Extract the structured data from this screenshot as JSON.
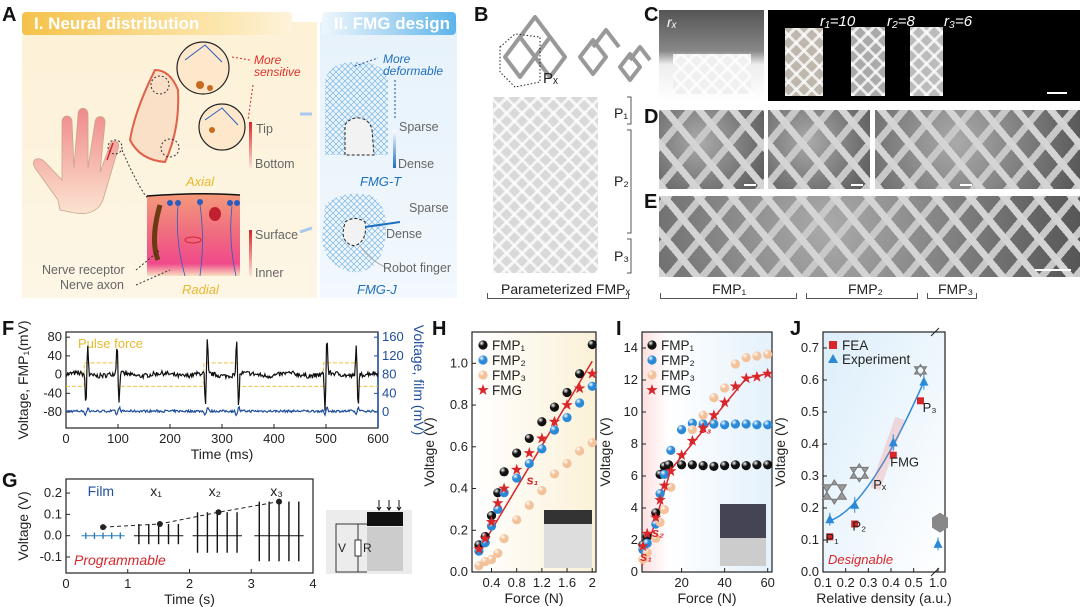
{
  "panels": {
    "A": "A",
    "B": "B",
    "C": "C",
    "D": "D",
    "E": "E",
    "F": "F",
    "G": "G",
    "H": "H",
    "I": "I",
    "J": "J"
  },
  "panel_a": {
    "header_left": "I. Neural distribution",
    "header_right": "II. FMG design",
    "more_sensitive": "More sensitive",
    "tip": "Tip",
    "bottom": "Bottom",
    "axial": "Axial",
    "surface": "Surface",
    "inner": "Inner",
    "radial": "Radial",
    "nerve_receptor": "Nerve receptor",
    "nerve_axon": "Nerve axon",
    "more_deformable": "More deformable",
    "sparse_t": "Sparse",
    "dense_t": "Dense",
    "fmg_t": "FMG-T",
    "sparse_j": "Sparse",
    "dense_j": "Dense",
    "robot_finger": "Robot finger",
    "fmg_j": "FMG-J",
    "colors": {
      "red": "#e0302a",
      "yellow": "#e8b92e",
      "blue": "#1e6fc0"
    }
  },
  "panel_b": {
    "px": "Pₓ",
    "p1": "P₁",
    "p2": "P₂",
    "p3": "P₃",
    "caption": "Parameterized FMPₓ"
  },
  "panel_c": {
    "rx": "rₓ",
    "r1": "r₁=10",
    "r2": "r₂=8",
    "r3": "r₃=6"
  },
  "panel_e": {
    "fmp1": "FMP₁",
    "fmp2": "FMP₂",
    "fmp3": "FMP₃"
  },
  "chart_data": [
    {
      "id": "F",
      "type": "line",
      "xlabel": "Time (ms)",
      "ylabel": "Voltage, FMP₁(mV)",
      "ylabel_right": "Voltage, film (mV)",
      "xlim": [
        0,
        600
      ],
      "ylim": [
        -114,
        91
      ],
      "ylim_right": [
        -34,
        171
      ],
      "xticks": [
        0,
        100,
        200,
        300,
        400,
        500,
        600
      ],
      "yticks": [
        80,
        40,
        0,
        -40,
        -80
      ],
      "yticks_right": [
        160,
        120,
        80,
        40,
        0
      ],
      "annotation": "Pulse force",
      "spike_times_ms": [
        40,
        100,
        270,
        330,
        500,
        560
      ],
      "spike_amplitudes_mV": [
        50,
        -50,
        55,
        -55,
        60,
        -50
      ],
      "pulse_force_intervals_ms": [
        [
          35,
          100
        ],
        [
          265,
          330
        ],
        [
          495,
          560
        ]
      ],
      "pulse_levels_mV": [
        -25,
        25
      ],
      "fmp1_baseline_mV": 0,
      "film_baseline_mV": 2,
      "colors": {
        "fmp1": "#111111",
        "film": "#1f4e9c",
        "pulse": "#f0c040"
      }
    },
    {
      "id": "G",
      "type": "line",
      "xlabel": "Time (s)",
      "ylabel": "Voltage (V)",
      "xlim": [
        0,
        4
      ],
      "ylim": [
        -0.175,
        0.266
      ],
      "xticks": [
        0,
        1,
        2,
        3,
        4
      ],
      "yticks": [
        0.2,
        0.1,
        0.0,
        -0.1
      ],
      "groups": [
        {
          "name": "Film",
          "start": 0.25,
          "end": 0.95,
          "peak": 0.015,
          "neg": -0.015,
          "color": "#2a7fc0"
        },
        {
          "name": "x₁",
          "start": 1.1,
          "end": 1.9,
          "peak": 0.055,
          "neg": -0.04,
          "color": "#111111"
        },
        {
          "name": "x₂",
          "start": 2.05,
          "end": 2.85,
          "peak": 0.11,
          "neg": -0.08,
          "color": "#111111"
        },
        {
          "name": "x₃",
          "start": 3.05,
          "end": 3.85,
          "peak": 0.16,
          "neg": -0.12,
          "color": "#111111"
        }
      ],
      "trend": [
        [
          0.6,
          0.04
        ],
        [
          1.52,
          0.055
        ],
        [
          2.47,
          0.11
        ],
        [
          3.45,
          0.16
        ]
      ],
      "annotation": "Programmable",
      "inset": {
        "v": "V",
        "r": "R"
      }
    },
    {
      "id": "H",
      "type": "scatter",
      "xlabel": "Force (N)",
      "ylabel": "Voltage (V)",
      "xlim": [
        0.09,
        2.06
      ],
      "ylim": [
        0,
        1.15
      ],
      "xticks": [
        0.4,
        0.8,
        1.2,
        1.6,
        2.0
      ],
      "yticks": [
        0.0,
        0.2,
        0.4,
        0.6,
        0.8,
        1.0
      ],
      "x": [
        0.2,
        0.3,
        0.4,
        0.5,
        0.6,
        0.8,
        1.0,
        1.2,
        1.4,
        1.6,
        1.8,
        2.0
      ],
      "series": [
        {
          "name": "FMP₁",
          "marker": "ball",
          "color": "#111111",
          "values": [
            0.13,
            0.17,
            0.27,
            0.38,
            0.48,
            0.57,
            0.64,
            0.72,
            0.79,
            0.86,
            0.95,
            1.09
          ]
        },
        {
          "name": "FMP₂",
          "marker": "ball",
          "color": "#2a8ad8",
          "values": [
            0.1,
            0.14,
            0.22,
            0.3,
            0.38,
            0.45,
            0.52,
            0.59,
            0.68,
            0.74,
            0.81,
            0.89
          ]
        },
        {
          "name": "FMP₃",
          "marker": "ball",
          "color": "#f3c29a",
          "values": [
            0.03,
            0.05,
            0.06,
            0.09,
            0.16,
            0.25,
            0.32,
            0.39,
            0.47,
            0.52,
            0.58,
            0.62
          ]
        },
        {
          "name": "FMG",
          "marker": "star",
          "color": "#d8262a",
          "values": [
            0.11,
            0.16,
            0.24,
            0.33,
            0.4,
            0.49,
            0.57,
            0.64,
            0.72,
            0.8,
            0.88,
            0.95
          ]
        }
      ],
      "fit_line": [
        [
          0.2,
          0.1
        ],
        [
          2.0,
          1.01
        ]
      ],
      "annotations": [
        "s₁"
      ],
      "legend": "top-left"
    },
    {
      "id": "I",
      "type": "scatter",
      "xlabel": "Force (N)",
      "ylabel": "Voltage (V)",
      "xlim": [
        1.6,
        62
      ],
      "ylim": [
        0,
        15
      ],
      "xticks": [
        20,
        40,
        60
      ],
      "yticks": [
        0,
        2,
        4,
        6,
        8,
        10,
        12,
        14
      ],
      "series": [
        {
          "name": "FMP₁",
          "marker": "ball",
          "color": "#111111",
          "points": [
            [
              2,
              1.7
            ],
            [
              4,
              2.2
            ],
            [
              8,
              3.7
            ],
            [
              10,
              6.1
            ],
            [
              12,
              6.6
            ],
            [
              14,
              6.7
            ],
            [
              20,
              6.7
            ],
            [
              25,
              6.7
            ],
            [
              30,
              6.65
            ],
            [
              35,
              6.6
            ],
            [
              40,
              6.65
            ],
            [
              45,
              6.7
            ],
            [
              50,
              6.65
            ],
            [
              55,
              6.7
            ],
            [
              60,
              6.7
            ]
          ]
        },
        {
          "name": "FMP₂",
          "marker": "ball",
          "color": "#2a8ad8",
          "points": [
            [
              2,
              1.4
            ],
            [
              4,
              1.8
            ],
            [
              8,
              3.0
            ],
            [
              10,
              4.9
            ],
            [
              12,
              6.1
            ],
            [
              15,
              7.6
            ],
            [
              20,
              8.9
            ],
            [
              25,
              9.3
            ],
            [
              30,
              9.25
            ],
            [
              35,
              9.25
            ],
            [
              40,
              9.2
            ],
            [
              45,
              9.25
            ],
            [
              50,
              9.25
            ],
            [
              55,
              9.2
            ],
            [
              60,
              9.2
            ]
          ]
        },
        {
          "name": "FMP₃",
          "marker": "ball",
          "color": "#f3c29a",
          "points": [
            [
              2,
              0.8
            ],
            [
              4,
              1.2
            ],
            [
              8,
              2.1
            ],
            [
              10,
              3.1
            ],
            [
              12,
              3.9
            ],
            [
              15,
              5.3
            ],
            [
              25,
              8.9
            ],
            [
              30,
              9.8
            ],
            [
              35,
              10.9
            ],
            [
              40,
              11.5
            ],
            [
              45,
              13.0
            ],
            [
              50,
              13.4
            ],
            [
              55,
              13.5
            ],
            [
              60,
              13.6
            ]
          ]
        },
        {
          "name": "FMG",
          "marker": "star",
          "color": "#d8262a",
          "points": [
            [
              2,
              1.6
            ],
            [
              4,
              2.4
            ],
            [
              8,
              3.4
            ],
            [
              10,
              4.5
            ],
            [
              12,
              5.4
            ],
            [
              15,
              6.3
            ],
            [
              20,
              7.3
            ],
            [
              25,
              8.2
            ],
            [
              30,
              9.0
            ],
            [
              35,
              9.8
            ],
            [
              40,
              10.6
            ],
            [
              45,
              11.6
            ],
            [
              50,
              12.1
            ],
            [
              55,
              12.2
            ],
            [
              60,
              12.4
            ]
          ]
        }
      ],
      "fit_line": [
        [
          1.6,
          0.4
        ],
        [
          15,
          6.4
        ],
        [
          50,
          12.1
        ],
        [
          60,
          12.4
        ]
      ],
      "annotations": [
        "s₁",
        "s₂",
        "s₃"
      ],
      "legend": "top-left"
    },
    {
      "id": "J",
      "type": "scatter",
      "xlabel": "Relative density (a.u.)",
      "ylabel": "Voltage (V)",
      "xlim": [
        0.1,
        1.05
      ],
      "ylim": [
        0,
        0.75
      ],
      "axis_break": [
        0.6,
        0.95
      ],
      "xticks": [
        0.1,
        0.2,
        0.3,
        0.4,
        0.5,
        1.0
      ],
      "xtick_labels": [
        "0.1",
        "0.2",
        "0.3",
        "0.4",
        "0.5",
        "1.0"
      ],
      "yticks": [
        0.0,
        0.1,
        0.2,
        0.3,
        0.4,
        0.5,
        0.6,
        0.7
      ],
      "series": [
        {
          "name": "FEA",
          "marker": "square",
          "color": "#d8262a",
          "points": [
            [
              0.13,
              0.11
            ],
            [
              0.24,
              0.15
            ],
            [
              0.41,
              0.365
            ],
            [
              0.53,
              0.535
            ]
          ]
        },
        {
          "name": "Experiment",
          "marker": "triangle",
          "color": "#2a8ad8",
          "points": [
            [
              0.13,
              0.165
            ],
            [
              0.24,
              0.21
            ],
            [
              0.41,
              0.405
            ],
            [
              0.545,
              0.595
            ],
            [
              1.0,
              0.088
            ]
          ],
          "errors": [
            0.02,
            0.025,
            0.025,
            0.025,
            0.02
          ]
        }
      ],
      "point_labels": [
        "P₁",
        "P₂",
        "FMG",
        "P₃",
        "Pₓ"
      ],
      "annotation": "Designable",
      "legend": "top-left"
    }
  ]
}
